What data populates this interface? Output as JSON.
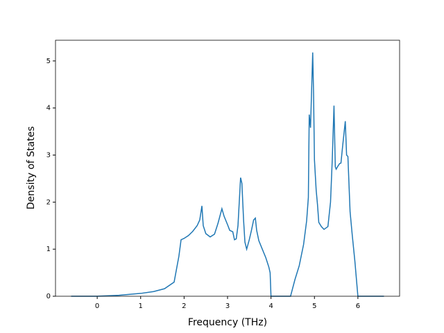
{
  "chart_data": {
    "type": "line",
    "x_label": "Frequency (THz)",
    "y_label": "Density of States",
    "x": [
      -0.6,
      0,
      0.5,
      1.0,
      1.3,
      1.55,
      1.77,
      1.82,
      1.88,
      1.93,
      2.0,
      2.1,
      2.2,
      2.3,
      2.36,
      2.41,
      2.44,
      2.5,
      2.6,
      2.7,
      2.78,
      2.87,
      2.92,
      3.0,
      3.05,
      3.12,
      3.16,
      3.2,
      3.24,
      3.3,
      3.33,
      3.37,
      3.4,
      3.44,
      3.5,
      3.55,
      3.6,
      3.64,
      3.67,
      3.72,
      3.8,
      3.88,
      3.95,
      3.98,
      4.0,
      4.45,
      4.55,
      4.65,
      4.75,
      4.82,
      4.86,
      4.88,
      4.91,
      4.96,
      4.98,
      5.0,
      5.04,
      5.07,
      5.1,
      5.16,
      5.22,
      5.31,
      5.37,
      5.41,
      5.45,
      5.48,
      5.5,
      5.53,
      5.58,
      5.61,
      5.65,
      5.71,
      5.74,
      5.77,
      5.82,
      5.87,
      5.93,
      6.0,
      6.6
    ],
    "values": [
      0,
      0,
      0.02,
      0.06,
      0.1,
      0.16,
      0.3,
      0.55,
      0.85,
      1.2,
      1.23,
      1.29,
      1.38,
      1.5,
      1.62,
      1.92,
      1.5,
      1.33,
      1.26,
      1.32,
      1.55,
      1.86,
      1.7,
      1.52,
      1.4,
      1.37,
      1.2,
      1.22,
      1.5,
      2.52,
      2.4,
      1.6,
      1.15,
      1.0,
      1.2,
      1.4,
      1.62,
      1.66,
      1.4,
      1.18,
      1.0,
      0.82,
      0.62,
      0.5,
      0,
      0,
      0.35,
      0.65,
      1.1,
      1.6,
      2.1,
      3.86,
      3.58,
      5.18,
      4.3,
      2.9,
      2.25,
      1.95,
      1.57,
      1.48,
      1.42,
      1.48,
      2.0,
      2.9,
      4.05,
      2.75,
      2.7,
      2.75,
      2.82,
      2.83,
      3.2,
      3.72,
      3.0,
      2.97,
      1.8,
      1.3,
      0.75,
      0,
      0
    ],
    "color": "#1f77b4",
    "xlim": [
      -0.96,
      6.96
    ],
    "xticks": [
      0,
      1,
      2,
      3,
      4,
      5,
      6
    ],
    "ylim": [
      0,
      5.44
    ],
    "yticks": [
      0,
      1,
      2,
      3,
      4,
      5
    ],
    "grid": false
  }
}
